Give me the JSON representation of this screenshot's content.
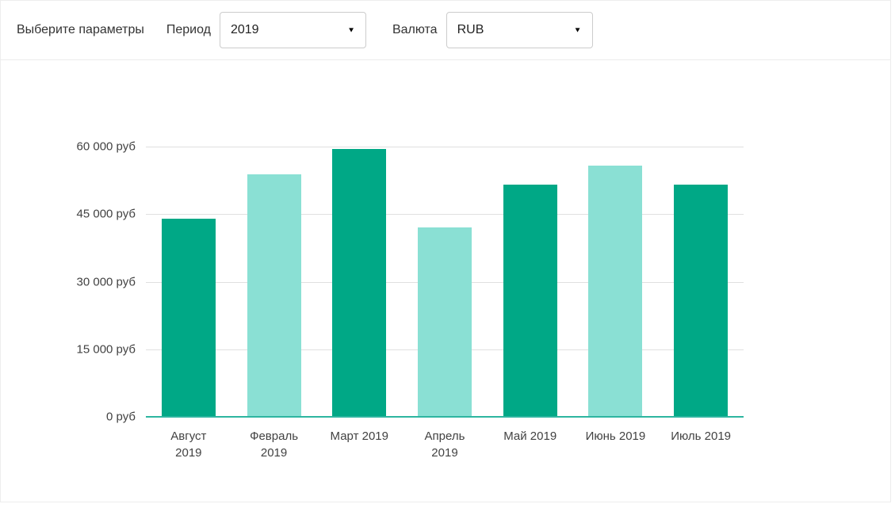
{
  "toolbar": {
    "title": "Выберите параметры",
    "period": {
      "label": "Период",
      "value": "2019"
    },
    "currency": {
      "label": "Валюта",
      "value": "RUB"
    },
    "dropdown_arrow": "▼"
  },
  "chart_data": {
    "type": "bar",
    "categories": [
      "Август\n2019",
      "Февраль\n2019",
      "Март 2019",
      "Апрель\n2019",
      "Май 2019",
      "Июнь 2019",
      "Июль 2019"
    ],
    "values": [
      44000,
      53800,
      59500,
      42000,
      51500,
      55800,
      51500
    ],
    "bar_colors": [
      "#00a886",
      "#8ae0d4",
      "#00a886",
      "#8ae0d4",
      "#00a886",
      "#8ae0d4",
      "#00a886"
    ],
    "y_ticks": [
      {
        "label": "60 000 руб",
        "value": 60000
      },
      {
        "label": "45 000 руб",
        "value": 45000
      },
      {
        "label": "30 000 руб",
        "value": 30000
      },
      {
        "label": "15 000 руб",
        "value": 15000
      },
      {
        "label": "0 руб",
        "value": 0
      }
    ],
    "title": "",
    "xlabel": "",
    "ylabel": "",
    "ylim": [
      0,
      60000
    ],
    "grid": true,
    "legend": "none",
    "colors": {
      "bar_dark": "#00a886",
      "bar_light": "#8ae0d4",
      "baseline": "#2db5a0",
      "gridline": "#e0e0e0",
      "axis_text": "#424242"
    }
  }
}
